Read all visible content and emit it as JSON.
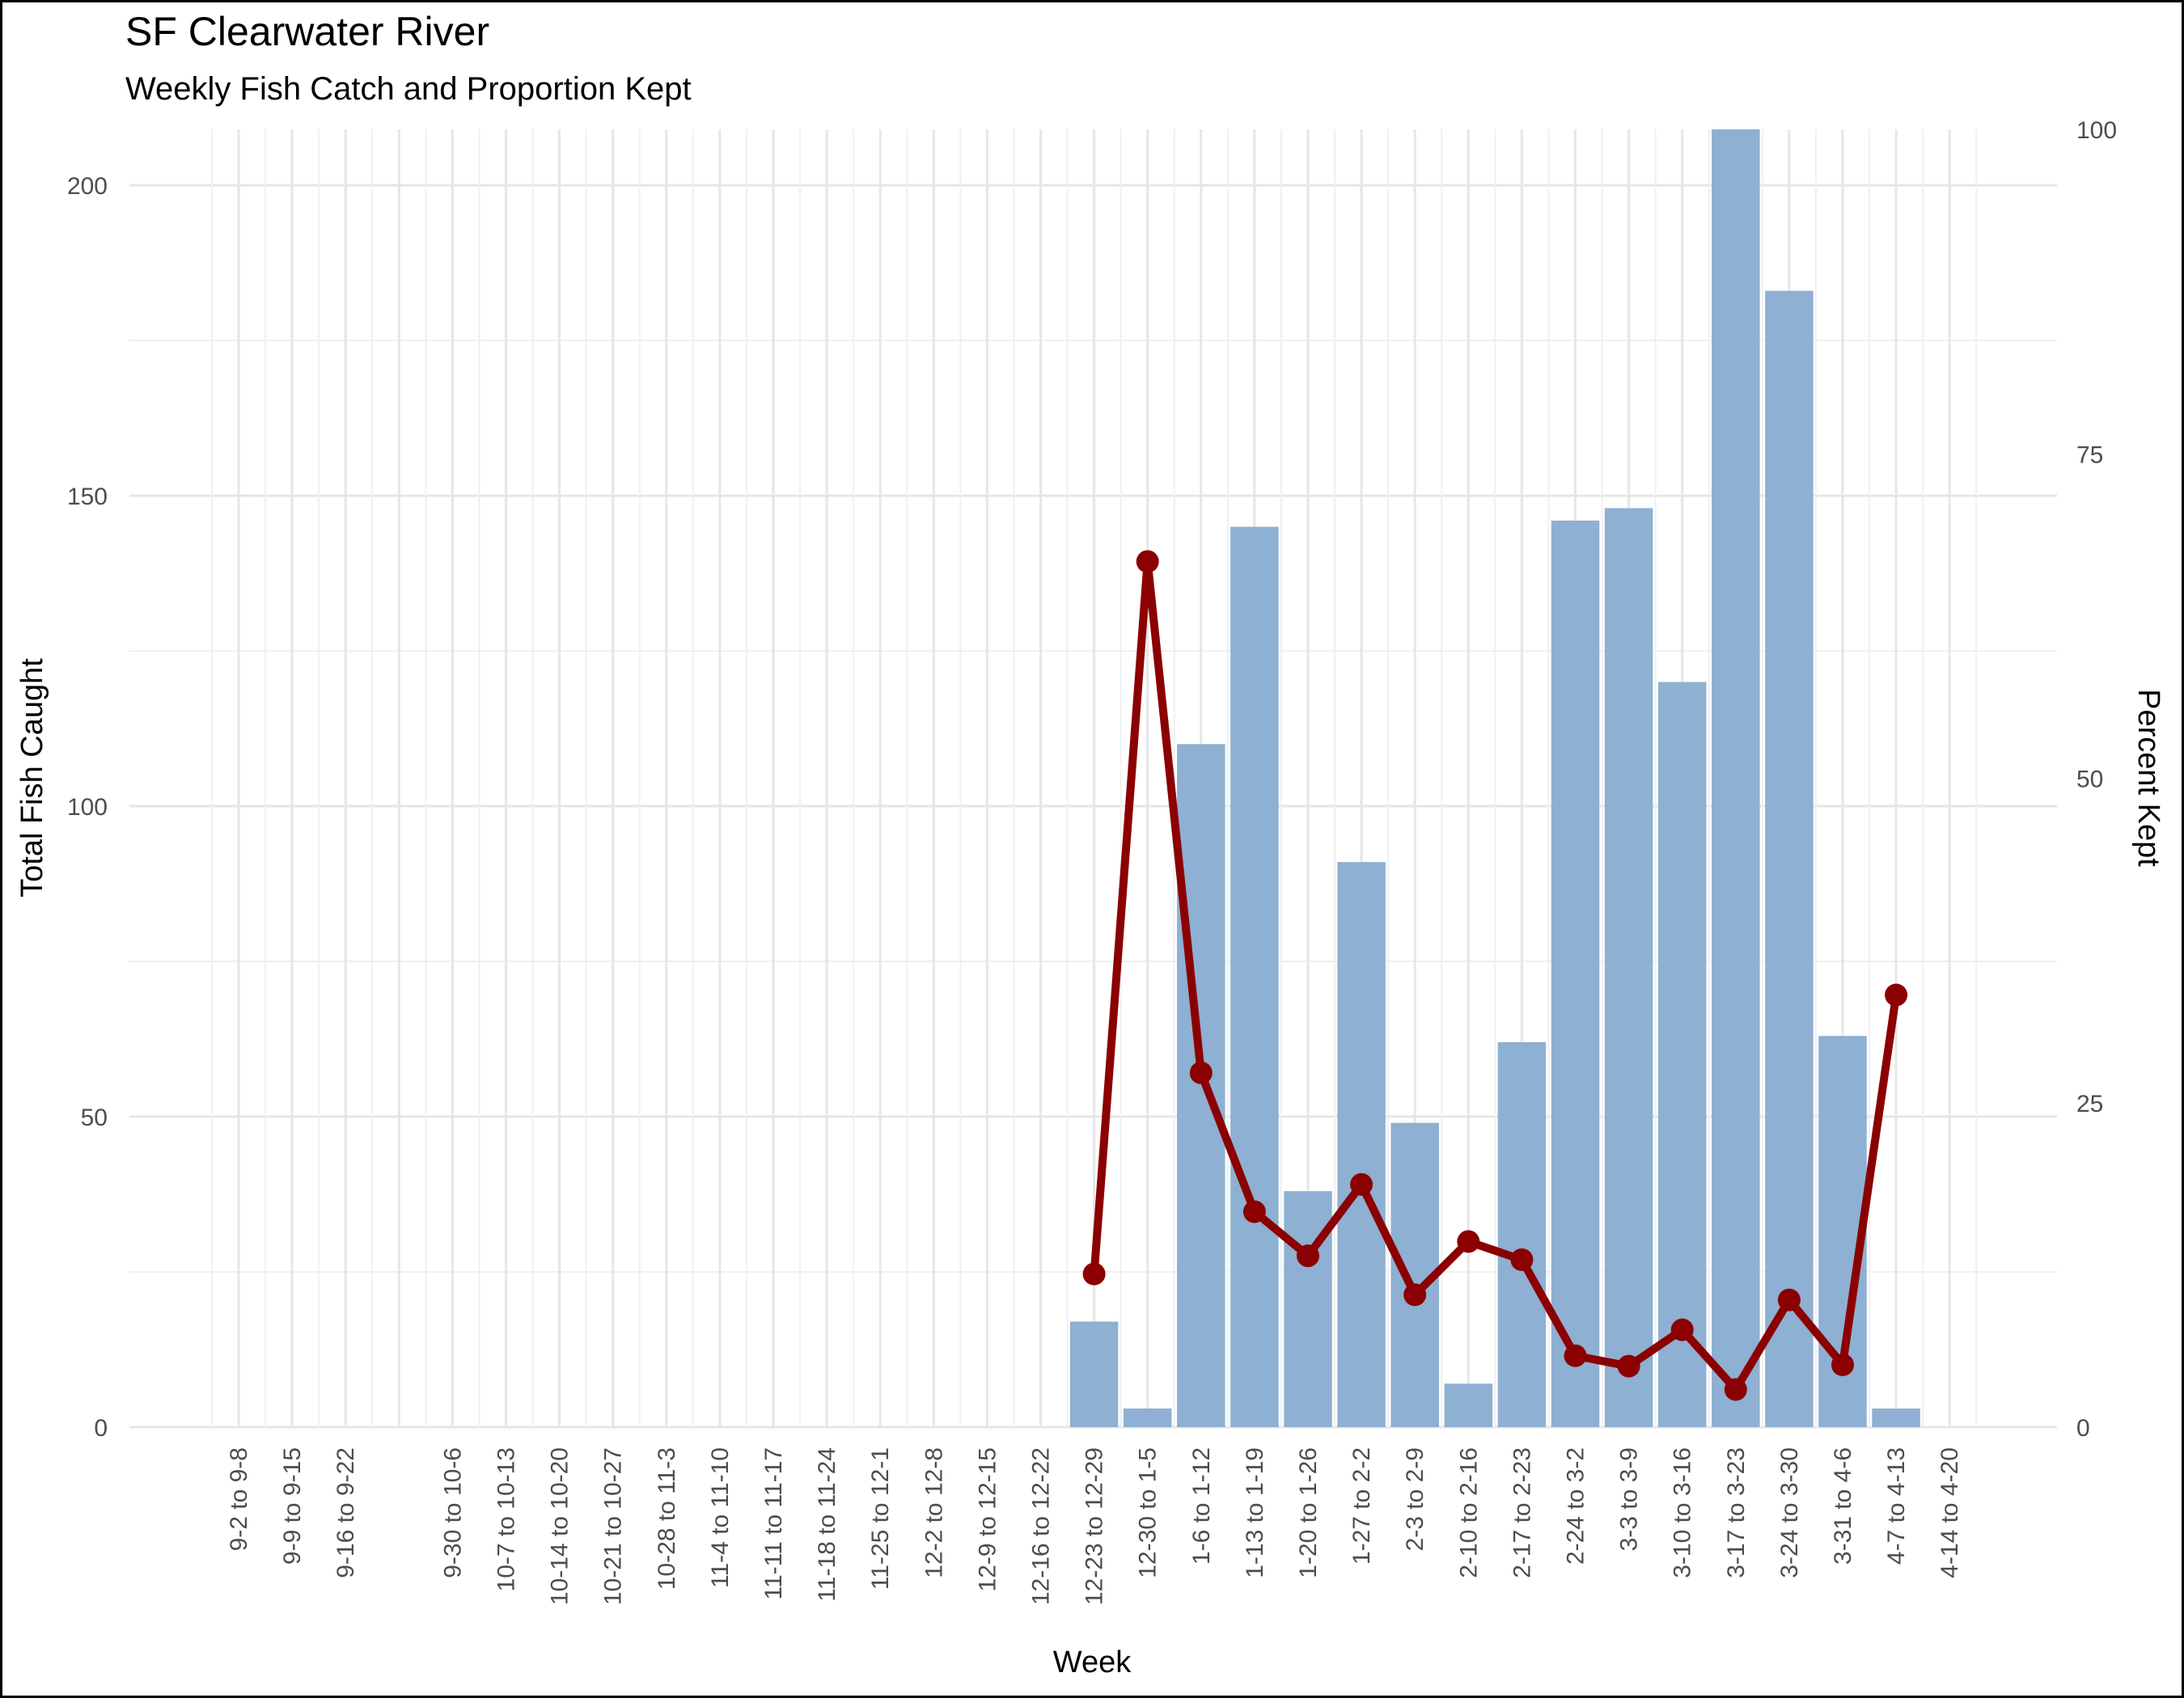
{
  "chart_data": {
    "type": "bar",
    "title": "SF Clearwater River",
    "subtitle": "Weekly Fish Catch and Proportion Kept",
    "xlabel": "Week",
    "ylabel": "Total Fish Caught",
    "y2label": "Percent Kept",
    "ylim": [
      0,
      209
    ],
    "y2lim": [
      0,
      100
    ],
    "yticks": [
      0,
      50,
      100,
      150,
      200
    ],
    "y2ticks": [
      0,
      25,
      50,
      75,
      100
    ],
    "grid": true,
    "categories": [
      "9-2 to 9-8",
      "9-9 to 9-15",
      "9-16 to 9-22",
      "",
      "9-30 to 10-6",
      "10-7 to 10-13",
      "10-14 to 10-20",
      "10-21 to 10-27",
      "10-28 to 11-3",
      "11-4 to 11-10",
      "11-11 to 11-17",
      "11-18 to 11-24",
      "11-25 to 12-1",
      "12-2 to 12-8",
      "12-9 to 12-15",
      "12-16 to 12-22",
      "12-23 to 12-29",
      "12-30 to 1-5",
      "1-6 to 1-12",
      "1-13 to 1-19",
      "1-20 to 1-26",
      "1-27 to 2-2",
      "2-3 to 2-9",
      "2-10 to 2-16",
      "2-17 to 2-23",
      "2-24 to 3-2",
      "3-3 to 3-9",
      "3-10 to 3-16",
      "3-17 to 3-23",
      "3-24 to 3-30",
      "3-31 to 4-6",
      "4-7 to 4-13",
      "4-14 to 4-20"
    ],
    "series": [
      {
        "name": "Total Fish Caught",
        "type": "bar",
        "color": "#8eb0d2",
        "values": [
          0,
          0,
          0,
          null,
          0,
          0,
          0,
          0,
          0,
          0,
          0,
          0,
          0,
          0,
          0,
          0,
          17,
          3,
          110,
          145,
          38,
          91,
          49,
          7,
          62,
          146,
          148,
          120,
          209,
          183,
          63,
          3,
          0
        ]
      },
      {
        "name": "Percent Kept",
        "type": "line",
        "axis": "right",
        "color": "#8b0000",
        "values": [
          null,
          null,
          null,
          null,
          null,
          null,
          null,
          null,
          null,
          null,
          null,
          null,
          null,
          null,
          null,
          null,
          11.8,
          66.7,
          27.3,
          16.6,
          13.2,
          18.7,
          10.2,
          14.3,
          12.9,
          5.5,
          4.7,
          7.5,
          2.9,
          9.8,
          4.8,
          33.3,
          null
        ]
      }
    ]
  }
}
